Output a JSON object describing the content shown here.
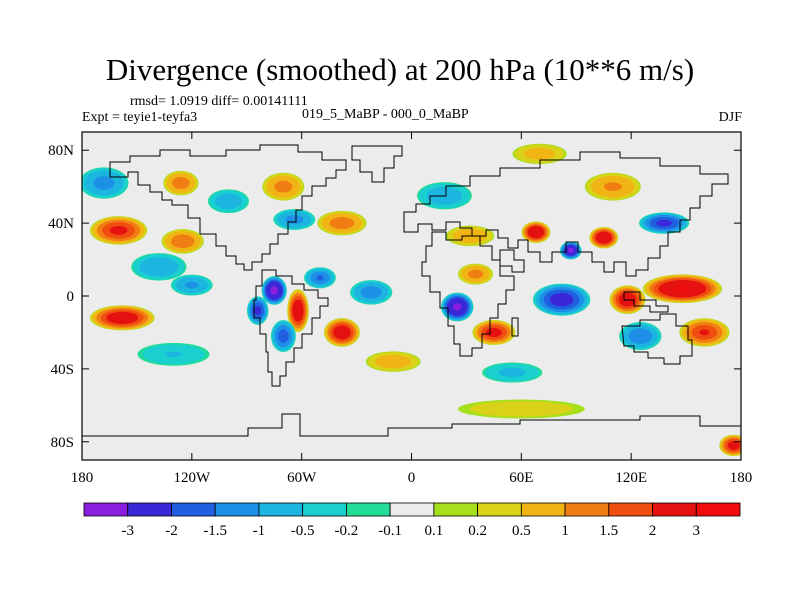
{
  "chart_data": {
    "type": "heatmap",
    "title": "Divergence (smoothed) at 200 hPa (10**6 m/s)",
    "stats": {
      "rmsd_label": "rmsd= 1.0919",
      "diff_label": "diff= 0.00141111"
    },
    "subtitle_left": "Expt = teyie1-teyfa3",
    "subtitle_center": "019_5_MaBP - 000_0_MaBP",
    "subtitle_right": "DJF",
    "x_range": [
      -180,
      180
    ],
    "y_range": [
      -90,
      90
    ],
    "x_ticks": [
      {
        "value": -180,
        "label": "180"
      },
      {
        "value": -120,
        "label": "120W"
      },
      {
        "value": -60,
        "label": "60W"
      },
      {
        "value": 0,
        "label": "0"
      },
      {
        "value": 60,
        "label": "60E"
      },
      {
        "value": 120,
        "label": "120E"
      },
      {
        "value": 180,
        "label": "180"
      }
    ],
    "y_ticks": [
      {
        "value": 80,
        "label": "80N"
      },
      {
        "value": 40,
        "label": "40N"
      },
      {
        "value": 0,
        "label": "0"
      },
      {
        "value": -40,
        "label": "40S"
      },
      {
        "value": -80,
        "label": "80S"
      }
    ],
    "colorbar": {
      "levels": [
        "-3",
        "-2",
        "-1.5",
        "-1",
        "-0.5",
        "-0.2",
        "-0.1",
        "0.1",
        "0.2",
        "0.5",
        "1",
        "1.5",
        "2",
        "3"
      ],
      "colors": [
        "#8b1fe0",
        "#3a28d8",
        "#1f5fe0",
        "#1e8fe6",
        "#1bb5e0",
        "#19cfcf",
        "#22dc98",
        "#ececec",
        "#a6df1c",
        "#d9d219",
        "#f0b415",
        "#f07e12",
        "#f04d10",
        "#e51010",
        "#f00c0c"
      ]
    },
    "features": [
      {
        "name": "ne-pacific-min",
        "lon": -168,
        "lat": 62,
        "value": -1.2,
        "rlon": 14,
        "rlat": 9
      },
      {
        "name": "n-pacific-max",
        "lon": -160,
        "lat": 36,
        "value": 2.2,
        "rlon": 16,
        "rlat": 8
      },
      {
        "name": "trop-pacific-max",
        "lon": -158,
        "lat": -12,
        "value": 2.6,
        "rlon": 18,
        "rlat": 7
      },
      {
        "name": "n-pacific-max-2",
        "lon": -125,
        "lat": 30,
        "value": 1.4,
        "rlon": 12,
        "rlat": 7
      },
      {
        "name": "e-pacific-min",
        "lon": -138,
        "lat": 16,
        "value": -0.9,
        "rlon": 16,
        "rlat": 8
      },
      {
        "name": "e-pacific-min-2",
        "lon": -120,
        "lat": 6,
        "value": -1.1,
        "rlon": 12,
        "rlat": 6
      },
      {
        "name": "s-pacific-min",
        "lon": -130,
        "lat": -32,
        "value": -0.5,
        "rlon": 22,
        "rlat": 7
      },
      {
        "name": "alaska-max",
        "lon": -126,
        "lat": 62,
        "value": 1.3,
        "rlon": 10,
        "rlat": 7
      },
      {
        "name": "n-america-min",
        "lon": -100,
        "lat": 52,
        "value": -0.8,
        "rlon": 12,
        "rlat": 7
      },
      {
        "name": "n-america-max",
        "lon": -70,
        "lat": 60,
        "value": 1.2,
        "rlon": 12,
        "rlat": 8
      },
      {
        "name": "n-atlantic-min",
        "lon": -64,
        "lat": 42,
        "value": -1.2,
        "rlon": 12,
        "rlat": 6
      },
      {
        "name": "n-atlantic-max",
        "lon": -38,
        "lat": 40,
        "value": 1.3,
        "rlon": 14,
        "rlat": 7
      },
      {
        "name": "c-america-min",
        "lon": -75,
        "lat": 3,
        "value": -3.3,
        "rlon": 7,
        "rlat": 8
      },
      {
        "name": "c-america-min-2",
        "lon": -84,
        "lat": -8,
        "value": -2.2,
        "rlon": 6,
        "rlat": 8
      },
      {
        "name": "s-america-max",
        "lon": -62,
        "lat": -8,
        "value": 2.7,
        "rlon": 6,
        "rlat": 12
      },
      {
        "name": "atlantic-max",
        "lon": -38,
        "lat": -20,
        "value": 2.6,
        "rlon": 10,
        "rlat": 8
      },
      {
        "name": "s-america-min",
        "lon": -50,
        "lat": 10,
        "value": -1.5,
        "rlon": 9,
        "rlat": 6
      },
      {
        "name": "s-america-min-2",
        "lon": -70,
        "lat": -22,
        "value": -1.8,
        "rlon": 7,
        "rlat": 9
      },
      {
        "name": "atlantic-min",
        "lon": -22,
        "lat": 2,
        "value": -1.3,
        "rlon": 12,
        "rlat": 7
      },
      {
        "name": "s-atlantic-max",
        "lon": -10,
        "lat": -36,
        "value": 0.8,
        "rlon": 16,
        "rlat": 6
      },
      {
        "name": "africa-min",
        "lon": 25,
        "lat": -6,
        "value": -3.2,
        "rlon": 9,
        "rlat": 8
      },
      {
        "name": "africa-max",
        "lon": 35,
        "lat": 12,
        "value": 1.2,
        "rlon": 10,
        "rlat": 6
      },
      {
        "name": "med-max",
        "lon": 32,
        "lat": 33,
        "value": 0.9,
        "rlon": 14,
        "rlat": 6
      },
      {
        "name": "europe-min",
        "lon": 18,
        "lat": 55,
        "value": -0.8,
        "rlon": 16,
        "rlat": 8
      },
      {
        "name": "s-africa-max",
        "lon": 45,
        "lat": -20,
        "value": 2.3,
        "rlon": 12,
        "rlat": 7
      },
      {
        "name": "s-indian-min",
        "lon": 55,
        "lat": -42,
        "value": -0.6,
        "rlon": 18,
        "rlat": 6
      },
      {
        "name": "indian-min",
        "lon": 82,
        "lat": -2,
        "value": -2.4,
        "rlon": 16,
        "rlat": 9
      },
      {
        "name": "asia-max",
        "lon": 68,
        "lat": 35,
        "value": 2.9,
        "rlon": 8,
        "rlat": 6
      },
      {
        "name": "tibet-min",
        "lon": 87,
        "lat": 25,
        "value": -3.0,
        "rlon": 6,
        "rlat": 5
      },
      {
        "name": "china-max",
        "lon": 105,
        "lat": 32,
        "value": 2.9,
        "rlon": 8,
        "rlat": 6
      },
      {
        "name": "w-pacific-min",
        "lon": 138,
        "lat": 40,
        "value": -2.2,
        "rlon": 14,
        "rlat": 6
      },
      {
        "name": "w-pacific-max",
        "lon": 148,
        "lat": 4,
        "value": 3.1,
        "rlon": 22,
        "rlat": 8
      },
      {
        "name": "maritime-max",
        "lon": 118,
        "lat": -2,
        "value": 2.6,
        "rlon": 10,
        "rlat": 8
      },
      {
        "name": "australia-min",
        "lon": 125,
        "lat": -22,
        "value": -1.4,
        "rlon": 12,
        "rlat": 8
      },
      {
        "name": "sw-pacific-max",
        "lon": 160,
        "lat": -20,
        "value": 2.0,
        "rlon": 14,
        "rlat": 8
      },
      {
        "name": "siberia-max",
        "lon": 110,
        "lat": 60,
        "value": 1.1,
        "rlon": 16,
        "rlat": 8
      },
      {
        "name": "arctic-max",
        "lon": 70,
        "lat": 78,
        "value": 0.7,
        "rlon": 16,
        "rlat": 6
      },
      {
        "name": "southern-ocean-max",
        "lon": 60,
        "lat": -62,
        "value": 0.4,
        "rlon": 40,
        "rlat": 6
      },
      {
        "name": "antarctic-margin-max",
        "lon": 176,
        "lat": -82,
        "value": 2.4,
        "rlon": 8,
        "rlat": 6
      }
    ]
  }
}
